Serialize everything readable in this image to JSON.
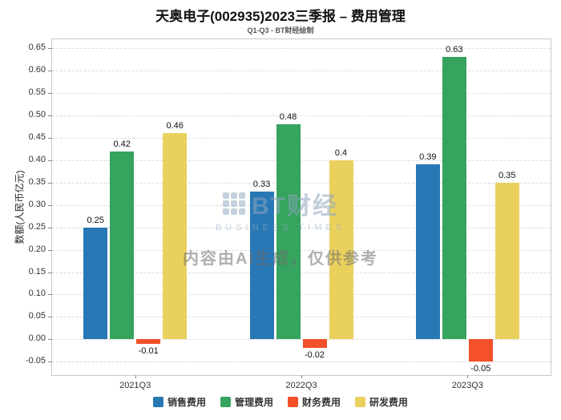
{
  "chart_data": {
    "type": "bar",
    "title": "天奥电子(002935)2023三季报 – 费用管理",
    "subtitle": "Q1-Q3 - BT财经绘制",
    "categories": [
      "2021Q3",
      "2022Q3",
      "2023Q3"
    ],
    "series": [
      {
        "name": "销售费用",
        "color": "#2878B5",
        "values": [
          0.25,
          0.33,
          0.39
        ]
      },
      {
        "name": "管理费用",
        "color": "#36A35F",
        "values": [
          0.42,
          0.48,
          0.63
        ]
      },
      {
        "name": "财务费用",
        "color": "#F4502A",
        "values": [
          -0.01,
          -0.02,
          -0.05
        ]
      },
      {
        "name": "研发费用",
        "color": "#EAD15E",
        "values": [
          0.46,
          0.4,
          0.35
        ]
      }
    ],
    "xlabel": "",
    "ylabel": "数额(人民币亿元)",
    "ylim": [
      -0.08,
      0.67
    ],
    "yticks": [
      -0.05,
      0,
      0.05,
      0.1,
      0.15,
      0.2,
      0.25,
      0.3,
      0.35,
      0.4,
      0.45,
      0.5,
      0.55,
      0.6,
      0.65
    ],
    "grid": true,
    "legend_position": "bottom"
  },
  "watermark": {
    "logo_text": "BT财经",
    "logo_sub": "BUSINESS TIMES",
    "disclaimer": "内容由AI生成，仅供参考"
  }
}
